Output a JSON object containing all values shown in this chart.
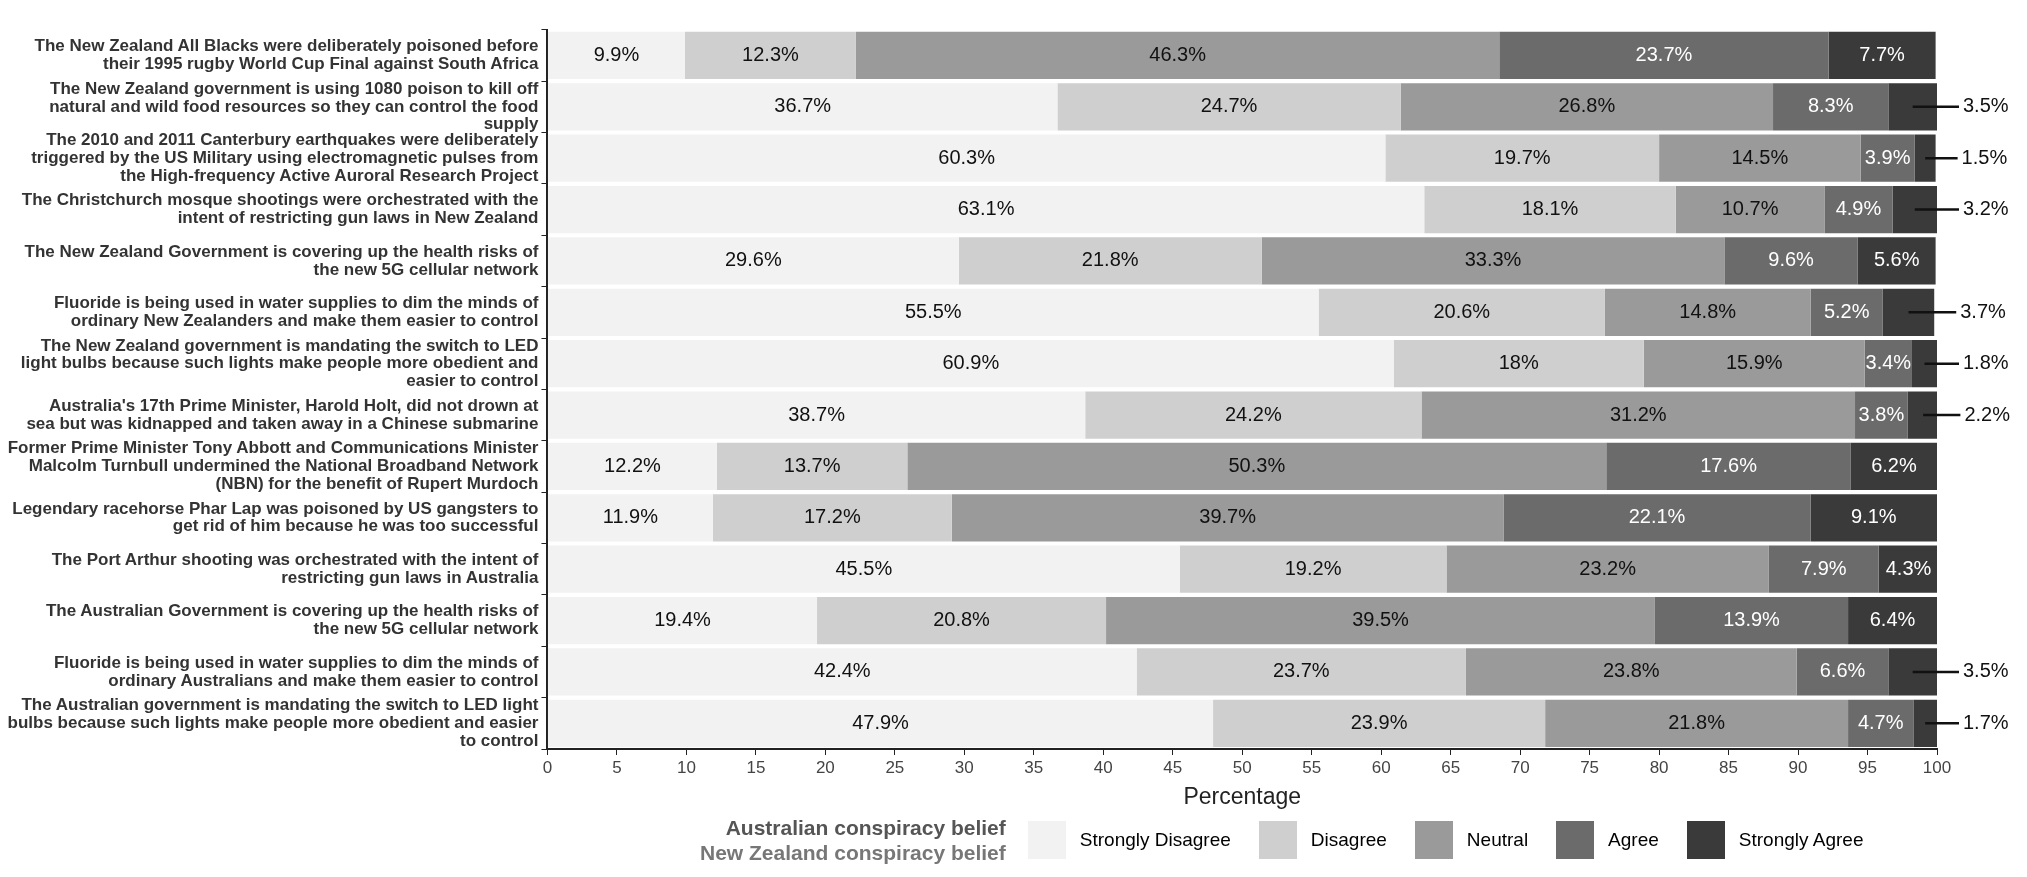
{
  "chart_data": {
    "type": "bar",
    "orientation": "horizontal",
    "stacked": true,
    "xlabel": "Percentage",
    "legend_title": "Australian conspiracy belief\nNew Zealand conspiracy belief",
    "legend": "bottom",
    "grid": false,
    "categories": [
      "The New Zealand All Blacks were deliberately poisoned before their 1995 rugby World Cup Final against South Africa",
      "The New Zealand government is using 1080 poison to kill off natural and wild food resources so they can control the food supply",
      "The 2010 and 2011 Canterbury earthquakes were deliberately triggered by the US Military using electromagnetic pulses from the High-frequency Active Auroral Research Project",
      "The Christchurch mosque shootings were orchestrated with the intent of restricting gun laws in New Zealand",
      "The New Zealand Government is covering up the health risks of the new 5G cellular network",
      "Fluoride is being used in water supplies to dim the minds of ordinary New Zealanders and make them easier to control",
      "The New Zealand government is mandating the switch to LED light bulbs because such lights make people more obedient and easier to control",
      "Australia's 17th Prime Minister, Harold Holt, did not drown at sea but was kidnapped and taken away in a Chinese submarine",
      "Former Prime Minister Tony Abbott and Communications Minister Malcolm Turnbull undermined the National Broadband Network (NBN) for the benefit of Rupert Murdoch",
      "Legendary racehorse Phar Lap was poisoned by US gangsters to get rid of him because he was too successful",
      "The Port Arthur shooting was orchestrated with the intent of restricting gun laws in Australia",
      "The Australian Government is covering up the health risks of the new 5G cellular network",
      "Fluoride is being used in water supplies to dim the minds of ordinary Australians and make them easier to control",
      "The Australian government is mandating the switch to LED light bulbs because such lights make people more obedient and easier to control"
    ],
    "xlim": [
      0,
      100
    ],
    "xticks": [
      0,
      5,
      10,
      15,
      20,
      25,
      30,
      35,
      40,
      45,
      50,
      55,
      60,
      65,
      70,
      75,
      80,
      85,
      90,
      95,
      100
    ],
    "series": [
      {
        "name": "Strongly Disagree",
        "color": "#f2f2f2",
        "values": [
          9.9,
          36.7,
          60.3,
          63.1,
          29.6,
          55.5,
          60.9,
          38.7,
          12.2,
          11.9,
          45.5,
          19.4,
          42.4,
          47.9
        ],
        "value_labels": [
          "9.9%",
          "36.7%",
          "60.3%",
          "63.1%",
          "29.6%",
          "55.5%",
          "60.9%",
          "38.7%",
          "12.2%",
          "11.9%",
          "45.5%",
          "19.4%",
          "42.4%",
          "47.9%"
        ]
      },
      {
        "name": "Disagree",
        "color": "#cfcfcf",
        "values": [
          12.3,
          24.7,
          19.7,
          18.1,
          21.8,
          20.6,
          18,
          24.2,
          13.7,
          17.2,
          19.2,
          20.8,
          23.7,
          23.9
        ],
        "value_labels": [
          "12.3%",
          "24.7%",
          "19.7%",
          "18.1%",
          "21.8%",
          "20.6%",
          "18%",
          "24.2%",
          "13.7%",
          "17.2%",
          "19.2%",
          "20.8%",
          "23.7%",
          "23.9%"
        ]
      },
      {
        "name": "Neutral",
        "color": "#9a9a9a",
        "values": [
          46.3,
          26.8,
          14.5,
          10.7,
          33.3,
          14.8,
          15.9,
          31.2,
          50.3,
          39.7,
          23.2,
          39.5,
          23.8,
          21.8
        ],
        "value_labels": [
          "46.3%",
          "26.8%",
          "14.5%",
          "10.7%",
          "33.3%",
          "14.8%",
          "15.9%",
          "31.2%",
          "50.3%",
          "39.7%",
          "23.2%",
          "39.5%",
          "23.8%",
          "21.8%"
        ]
      },
      {
        "name": "Agree",
        "color": "#6b6b6b",
        "values": [
          23.7,
          8.3,
          3.9,
          4.9,
          9.6,
          5.2,
          3.4,
          3.8,
          17.6,
          22.1,
          7.9,
          13.9,
          6.6,
          4.7
        ],
        "value_labels": [
          "23.7%",
          "8.3%",
          "3.9%",
          "4.9%",
          "9.6%",
          "5.2%",
          "3.4%",
          "3.8%",
          "17.6%",
          "22.1%",
          "7.9%",
          "13.9%",
          "6.6%",
          "4.7%"
        ]
      },
      {
        "name": "Strongly Agree",
        "color": "#3a3a3a",
        "values": [
          7.7,
          3.5,
          1.5,
          3.2,
          5.6,
          3.7,
          1.8,
          2.2,
          6.2,
          9.1,
          4.3,
          6.4,
          3.5,
          1.7
        ],
        "value_labels": [
          "7.7%",
          "3.5%",
          "1.5%",
          "3.2%",
          "5.6%",
          "3.7%",
          "1.8%",
          "2.2%",
          "6.2%",
          "9.1%",
          "4.3%",
          "6.4%",
          "3.5%",
          "1.7%"
        ]
      }
    ]
  }
}
